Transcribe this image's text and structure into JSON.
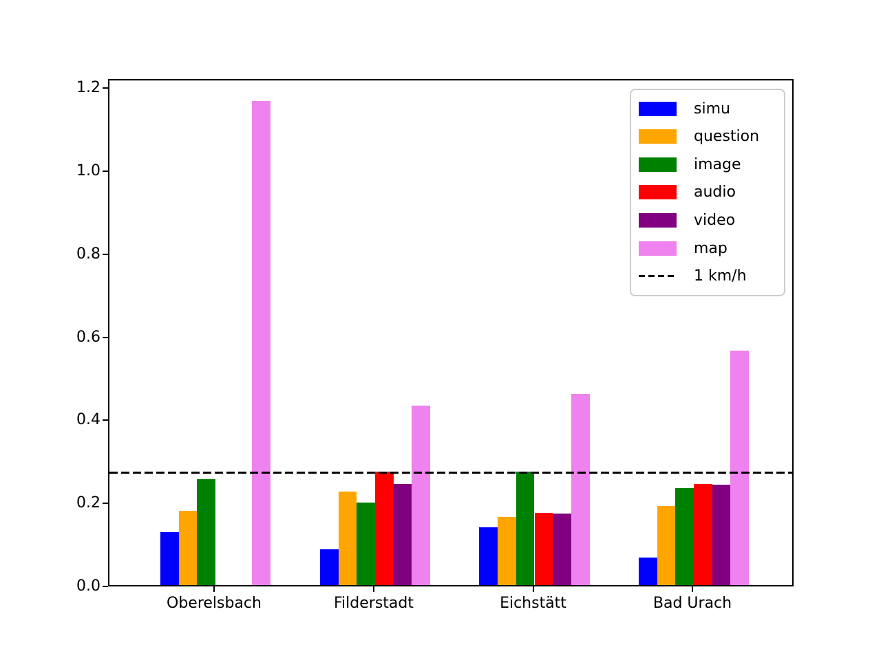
{
  "figure": {
    "background_color": "#ffffff"
  },
  "chart_data": {
    "type": "bar",
    "categories": [
      "Oberelsbach",
      "Filderstadt",
      "Eichstätt",
      "Bad Urach"
    ],
    "series": [
      {
        "name": "simu",
        "color": "#0000ff",
        "values": [
          0.128,
          0.086,
          0.14,
          0.067
        ]
      },
      {
        "name": "question",
        "color": "#ffa500",
        "values": [
          0.179,
          0.225,
          0.164,
          0.191
        ]
      },
      {
        "name": "image",
        "color": "#008000",
        "values": [
          0.255,
          0.199,
          0.274,
          0.234
        ]
      },
      {
        "name": "audio",
        "color": "#ff0000",
        "values": [
          0.0,
          0.273,
          0.174,
          0.244
        ]
      },
      {
        "name": "video",
        "color": "#800080",
        "values": [
          0.0,
          0.244,
          0.172,
          0.242
        ]
      },
      {
        "name": "map",
        "color": "#ee82ee",
        "values": [
          1.166,
          0.432,
          0.461,
          0.564
        ]
      }
    ],
    "reference_line": {
      "label": "1 km/h",
      "value": 0.2778,
      "style": "dashed",
      "color": "#000000"
    },
    "title": "",
    "xlabel": "",
    "ylabel": "",
    "ylim": [
      0,
      1.222
    ],
    "yticks": [
      0.0,
      0.2,
      0.4,
      0.6,
      0.8,
      1.0,
      1.2
    ],
    "ytick_labels": [
      "0.0",
      "0.2",
      "0.4",
      "0.6",
      "0.8",
      "1.0",
      "1.2"
    ],
    "legend_position": "upper right",
    "grid": false
  }
}
